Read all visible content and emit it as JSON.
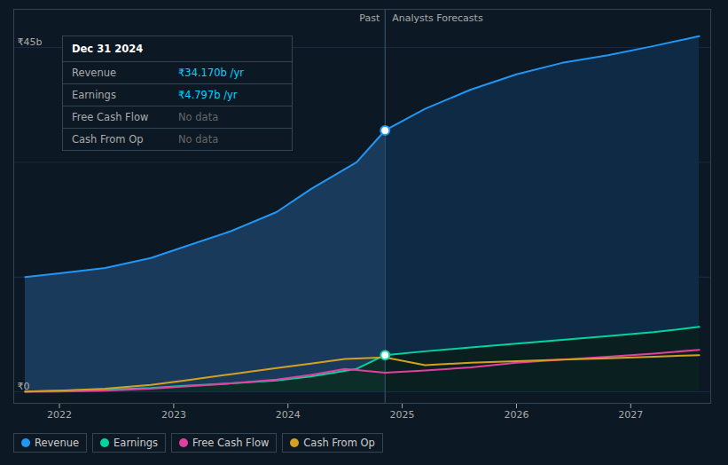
{
  "chart_data": {
    "type": "line",
    "xlim": [
      2021.6,
      2027.7
    ],
    "xticks": [
      2022,
      2023,
      2024,
      2025,
      2026,
      2027
    ],
    "ylim": [
      -1.5,
      50
    ],
    "yticks": [
      0,
      15,
      30,
      45
    ],
    "grid": true,
    "tick_labels": "x",
    "series": [
      {
        "name": "Revenue",
        "type": "area",
        "color": "#2196f3",
        "colors": [
          "#1a3a5c",
          "#0f2a44"
        ],
        "marker": "circle",
        "x": [
          2021.7,
          2022.0,
          2022.4,
          2022.8,
          2023.1,
          2023.5,
          2023.9,
          2024.2,
          2024.6,
          2024.85,
          2025.2,
          2025.6,
          2026.0,
          2026.4,
          2026.8,
          2027.2,
          2027.6
        ],
        "values": [
          15.0,
          15.5,
          16.2,
          17.5,
          19.0,
          21.0,
          23.5,
          26.5,
          30.0,
          34.17,
          37.0,
          39.5,
          41.5,
          43.0,
          44.0,
          45.2,
          46.5
        ]
      },
      {
        "name": "Earnings",
        "type": "area",
        "color": "#00d4a0",
        "colors": [
          "#0d2e28",
          "#0a2020"
        ],
        "marker": "circle",
        "x": [
          2021.7,
          2022.0,
          2022.4,
          2022.8,
          2023.1,
          2023.5,
          2023.9,
          2024.2,
          2024.6,
          2024.85,
          2025.2,
          2025.6,
          2026.0,
          2026.4,
          2026.8,
          2027.2,
          2027.6
        ],
        "values": [
          0.05,
          0.15,
          0.3,
          0.5,
          0.8,
          1.1,
          1.5,
          2.0,
          3.0,
          4.797,
          5.3,
          5.8,
          6.3,
          6.8,
          7.3,
          7.8,
          8.5
        ]
      },
      {
        "name": "Free Cash Flow",
        "type": "line",
        "color": "#e040a0",
        "x": [
          2021.7,
          2022.0,
          2022.4,
          2022.8,
          2023.1,
          2023.5,
          2023.9,
          2024.2,
          2024.5,
          2024.85,
          2025.2,
          2025.6,
          2026.0,
          2026.4,
          2026.8,
          2027.2,
          2027.6
        ],
        "values": [
          0.02,
          0.05,
          0.15,
          0.4,
          0.7,
          1.1,
          1.6,
          2.2,
          3.0,
          2.5,
          2.8,
          3.2,
          3.8,
          4.2,
          4.6,
          5.0,
          5.5
        ]
      },
      {
        "name": "Cash From Op",
        "type": "line",
        "color": "#d4a020",
        "x": [
          2021.7,
          2022.0,
          2022.4,
          2022.8,
          2023.1,
          2023.5,
          2023.9,
          2024.2,
          2024.5,
          2024.85,
          2025.2,
          2025.6,
          2026.0,
          2026.4,
          2026.8,
          2027.2,
          2027.6
        ],
        "values": [
          0.05,
          0.15,
          0.4,
          0.9,
          1.5,
          2.3,
          3.1,
          3.7,
          4.3,
          4.5,
          3.5,
          3.8,
          4.0,
          4.2,
          4.4,
          4.6,
          4.8
        ]
      }
    ],
    "divider": {
      "x": 2024.85,
      "color": "#3a5a7a",
      "labels": [
        "Past",
        "Analysts Forecasts"
      ]
    },
    "annotations": [
      {
        "text": "₹45b",
        "y": 45
      },
      {
        "text": "₹0",
        "y": 0
      }
    ],
    "tooltip": {
      "title": "Dec 31 2024",
      "rows": [
        {
          "label": "Revenue",
          "value": "₹34.170b /yr",
          "color": "#00d4ff"
        },
        {
          "label": "Earnings",
          "value": "₹4.797b /yr",
          "color": "#00d4ff"
        },
        {
          "label": "Free Cash Flow",
          "value": "No data",
          "color": "#666666"
        },
        {
          "label": "Cash From Op",
          "value": "No data",
          "color": "#666666"
        }
      ]
    }
  }
}
